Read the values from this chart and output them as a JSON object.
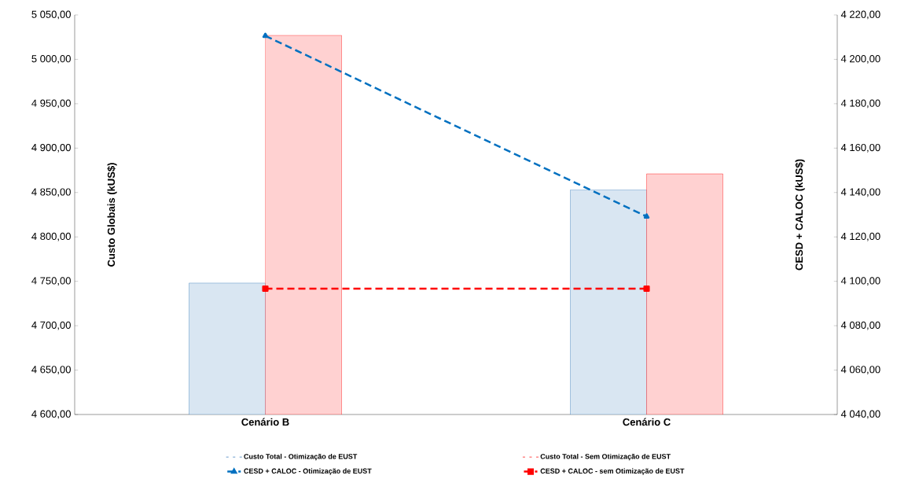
{
  "chart_data": {
    "type": "bar",
    "categories": [
      "Cenário B",
      "Cenário C"
    ],
    "ylabel": "Custo Globais  (kUS$)",
    "y2label": "CESD + CALOC  (kUS$)",
    "series": [
      {
        "name": "Custo Total - Otimização de EUST",
        "color": "#2e75b6",
        "values": [
          4748,
          4853
        ]
      },
      {
        "name": "Custo Total - Sem Otimização de EUST",
        "color": "#ff0000",
        "values": [
          5027,
          4871
        ]
      },
      {
        "name": "CESD + CALOC - Otimização de EUST",
        "type": "line",
        "axis": "y2",
        "color": "#0070c0",
        "marker": "triangle",
        "line_style": "dashed",
        "values": [
          4210.6,
          4129.2
        ]
      },
      {
        "name": "CESD + CALOC - sem Otimização de EUST",
        "type": "line",
        "axis": "y2",
        "color": "#ff0000",
        "marker": "square",
        "line_style": "dashed",
        "values": [
          4096.7,
          4096.7
        ]
      }
    ],
    "ylim": [
      4600,
      5050
    ],
    "yticks": [
      {
        "value": 4600,
        "label": "4 600,00"
      },
      {
        "value": 4650,
        "label": "4 650,00"
      },
      {
        "value": 4700,
        "label": "4 700,00"
      },
      {
        "value": 4750,
        "label": "4 750,00"
      },
      {
        "value": 4800,
        "label": "4 800,00"
      },
      {
        "value": 4850,
        "label": "4 850,00"
      },
      {
        "value": 4900,
        "label": "4 900,00"
      },
      {
        "value": 4950,
        "label": "4 950,00"
      },
      {
        "value": 5000,
        "label": "5 000,00"
      },
      {
        "value": 5050,
        "label": "5 050,00"
      }
    ],
    "y2lim": [
      4040,
      4220
    ],
    "y2ticks": [
      {
        "value": 4040,
        "label": "4 040,00"
      },
      {
        "value": 4060,
        "label": "4 060,00"
      },
      {
        "value": 4080,
        "label": "4 080,00"
      },
      {
        "value": 4100,
        "label": "4 100,00"
      },
      {
        "value": 4120,
        "label": "4 120,00"
      },
      {
        "value": 4140,
        "label": "4 140,00"
      },
      {
        "value": 4160,
        "label": "4 160,00"
      },
      {
        "value": 4180,
        "label": "4 180,00"
      },
      {
        "value": 4200,
        "label": "4 200,00"
      },
      {
        "value": 4220,
        "label": "4 220,00"
      }
    ],
    "grid": false,
    "legend": "bottom"
  }
}
